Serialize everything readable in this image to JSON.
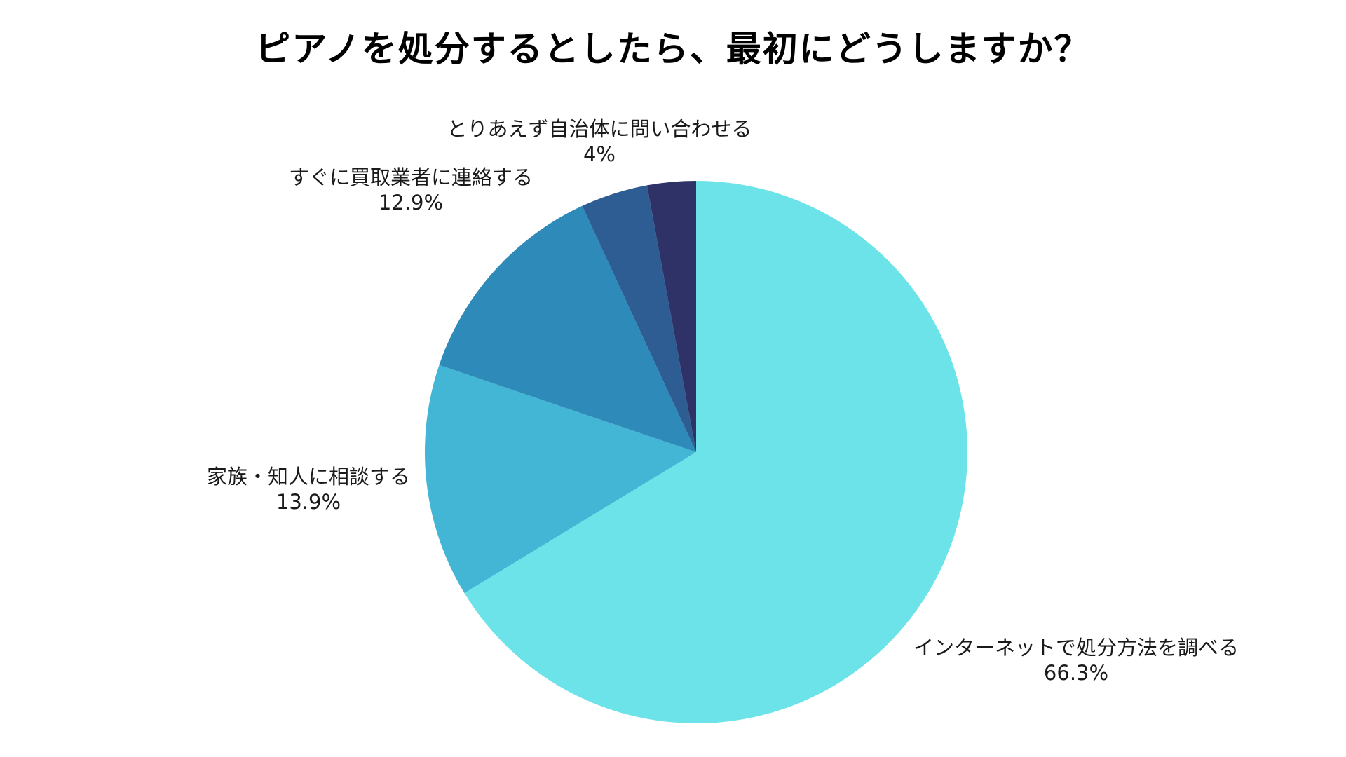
{
  "chart_data": {
    "type": "pie",
    "title": "ピアノを処分するとしたら、最初にどうしますか？",
    "slices": [
      {
        "label": "インターネットで処分方法を調べる",
        "value": 66.3,
        "value_label": "66.3%",
        "color": "#6ce3e8"
      },
      {
        "label": "家族・知人に相談する",
        "value": 13.9,
        "value_label": "13.9%",
        "color": "#43b6d5"
      },
      {
        "label": "すぐに買取業者に連絡する",
        "value": 12.9,
        "value_label": "12.9%",
        "color": "#2e8ab8"
      },
      {
        "label": "とりあえず自治体に問い合わせる",
        "value": 4,
        "value_label": "4%",
        "color": "#2e5d94"
      },
      {
        "label": "",
        "value": 2.9,
        "value_label": "",
        "color": "#2e3266"
      }
    ],
    "start_position": "top",
    "direction": "clockwise"
  }
}
